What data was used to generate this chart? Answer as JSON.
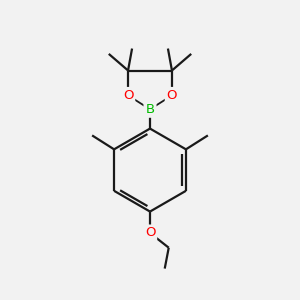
{
  "background_color": "#f2f2f2",
  "bond_color": "#1a1a1a",
  "bond_width": 1.6,
  "O_color": "#ff0000",
  "B_color": "#00bb00",
  "figsize": [
    3.0,
    3.0
  ],
  "dpi": 100,
  "xlim": [
    0,
    10
  ],
  "ylim": [
    0,
    11
  ]
}
